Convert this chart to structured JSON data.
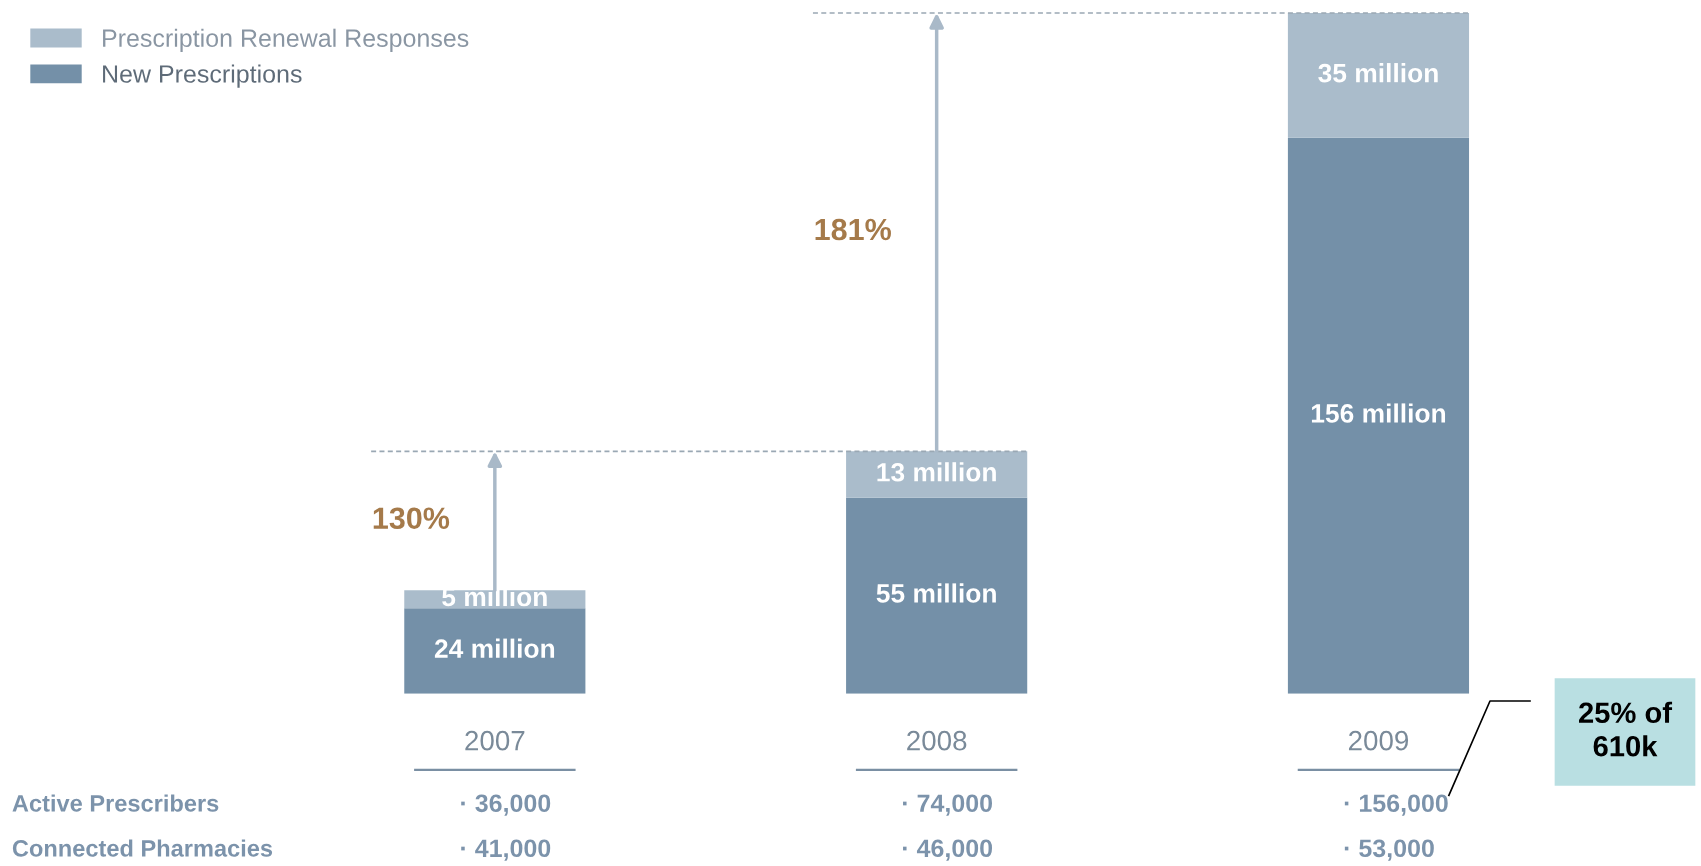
{
  "chart_data": {
    "type": "bar",
    "stacked": true,
    "legend": "top left",
    "categories": [
      "2007",
      "2008",
      "2009"
    ],
    "series": [
      {
        "name": "New Prescriptions",
        "color": "#7490a8",
        "values": [
          24,
          55,
          156
        ],
        "value_labels": [
          "24 million",
          "55 million",
          "156 million"
        ]
      },
      {
        "name": "Prescription Renewal Responses",
        "color": "#aabccb",
        "values": [
          5,
          13,
          35
        ],
        "value_labels": [
          "5 million",
          "13 million",
          "35 million"
        ]
      }
    ],
    "annotations": [
      "130%",
      "181%",
      "25% of 610k",
      "Active Prescribers",
      "· 36,000",
      "· 74,000",
      "· 156,000",
      "Connected Pharmacies",
      "· 41,000",
      "· 46,000",
      "· 53,000"
    ]
  }
}
